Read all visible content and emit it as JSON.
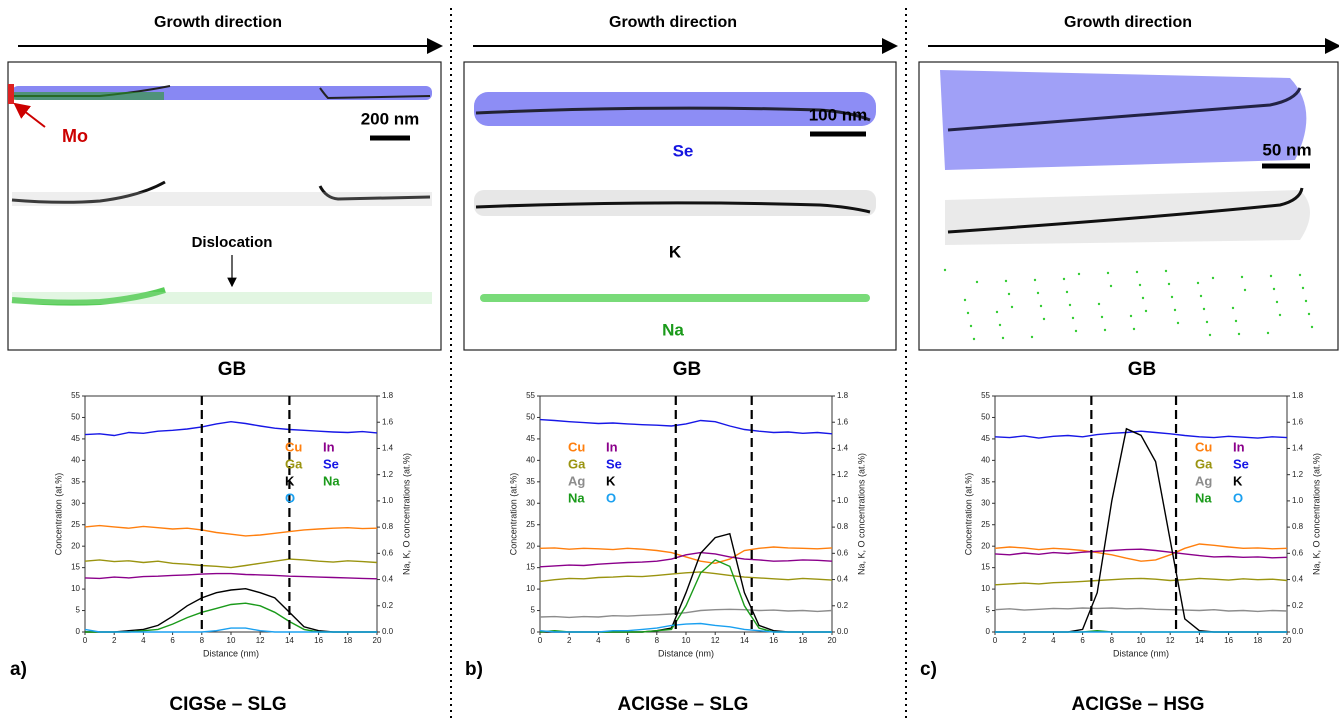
{
  "panels": [
    {
      "growth_direction": "Growth direction",
      "image_labels": [
        "Mo",
        "200 nm",
        "Dislocation"
      ],
      "gb_label": "GB",
      "label": "a)",
      "title": "CIGSe – SLG"
    },
    {
      "growth_direction": "Growth direction",
      "image_labels": [
        "Se",
        "100 nm",
        "K",
        "Na"
      ],
      "gb_label": "GB",
      "label": "b)",
      "title": "ACIGSe – SLG"
    },
    {
      "growth_direction": "Growth direction",
      "image_labels": [
        "50 nm"
      ],
      "gb_label": "GB",
      "label": "c)",
      "title": "ACIGSe – HSG"
    }
  ],
  "chart_data": [
    {
      "type": "line",
      "xlabel": "Distance (nm)",
      "ylabel": "Concentration (at.%)",
      "y2label": "Na, K, O concentrations (at.%)",
      "x": [
        0,
        1,
        2,
        3,
        4,
        5,
        6,
        7,
        8,
        9,
        10,
        11,
        12,
        13,
        14,
        15,
        16,
        17,
        18,
        19,
        20
      ],
      "xlim": [
        0,
        20
      ],
      "xticks": [
        0,
        2,
        4,
        6,
        8,
        10,
        12,
        14,
        16,
        18,
        20
      ],
      "ylim": [
        0,
        55
      ],
      "yticks": [
        0,
        5,
        10,
        15,
        20,
        25,
        30,
        35,
        40,
        45,
        50,
        55
      ],
      "y2lim": [
        0,
        1.8
      ],
      "y2ticks": [
        {
          "value": 0,
          "label": "0.0"
        },
        0.2,
        0.4,
        0.6,
        0.8,
        {
          "value": 1,
          "label": "1.0"
        },
        1.2,
        1.4,
        1.6,
        1.8
      ],
      "vlines": [
        8,
        14
      ],
      "legend": "upper right",
      "series": [
        {
          "name": "Cu",
          "color": "#ff7f0e",
          "values": [
            24.5,
            24.8,
            24.5,
            24.2,
            24.6,
            24.3,
            24,
            24.2,
            23.8,
            23.2,
            22.8,
            22.4,
            22.6,
            23,
            23.4,
            23.8,
            24,
            24.2,
            24.3,
            24.1,
            24.2
          ]
        },
        {
          "name": "In",
          "color": "#8b008b",
          "values": [
            12.6,
            12.5,
            12.8,
            12.6,
            12.9,
            13,
            13.2,
            13.3,
            13.5,
            13.6,
            13.6,
            13.4,
            13.3,
            13.2,
            13,
            12.9,
            12.8,
            12.7,
            12.6,
            12.5,
            12.4
          ]
        },
        {
          "name": "Ga",
          "color": "#9a9410",
          "values": [
            16.5,
            16.8,
            16.4,
            16.6,
            16.2,
            16.5,
            16,
            15.8,
            15.5,
            15.3,
            15,
            15.5,
            16,
            16.5,
            17,
            16.8,
            16.5,
            16.3,
            16.6,
            16.4,
            16.2
          ]
        },
        {
          "name": "Se",
          "color": "#1717e6",
          "values": [
            46,
            46.2,
            45.8,
            46.5,
            46.3,
            46.8,
            47,
            47.3,
            47.8,
            48.5,
            49,
            48.6,
            48,
            47.5,
            47.2,
            47,
            46.8,
            46.6,
            46.5,
            46.7,
            46.4
          ]
        },
        {
          "name": "K",
          "color": "#000000",
          "axis": "y2",
          "values": [
            0,
            0,
            0,
            0.01,
            0.02,
            0.05,
            0.12,
            0.2,
            0.26,
            0.3,
            0.32,
            0.33,
            0.3,
            0.26,
            0.15,
            0.04,
            0.01,
            0,
            0,
            0,
            0
          ]
        },
        {
          "name": "Na",
          "color": "#1a9a1a",
          "axis": "y2",
          "values": [
            0,
            0,
            0,
            0,
            0.01,
            0.02,
            0.06,
            0.11,
            0.15,
            0.18,
            0.21,
            0.22,
            0.2,
            0.15,
            0.08,
            0.02,
            0,
            0,
            0,
            0,
            0
          ]
        },
        {
          "name": "O",
          "color": "#1aa0f0",
          "axis": "y2",
          "values": [
            0.02,
            0,
            0,
            0,
            0,
            0,
            0,
            0,
            0,
            0.01,
            0.03,
            0.03,
            0.01,
            0,
            0,
            0,
            0,
            0,
            0,
            0,
            0
          ]
        }
      ]
    },
    {
      "type": "line",
      "xlabel": "Distance (nm)",
      "ylabel": "Concentration (at.%)",
      "y2label": "Na, K, O concentrations (at.%)",
      "x": [
        0,
        1,
        2,
        3,
        4,
        5,
        6,
        7,
        8,
        9,
        10,
        11,
        12,
        13,
        14,
        15,
        16,
        17,
        18,
        19,
        20
      ],
      "xlim": [
        0,
        20
      ],
      "xticks": [
        0,
        2,
        4,
        6,
        8,
        10,
        12,
        14,
        16,
        18,
        20
      ],
      "ylim": [
        0,
        55
      ],
      "yticks": [
        0,
        5,
        10,
        15,
        20,
        25,
        30,
        35,
        40,
        45,
        50,
        55
      ],
      "y2lim": [
        0,
        1.8
      ],
      "y2ticks": [
        {
          "value": 0,
          "label": "0.0"
        },
        0.2,
        0.4,
        0.6,
        0.8,
        {
          "value": 1,
          "label": "1.0"
        },
        1.2,
        1.4,
        1.6,
        1.8
      ],
      "vlines": [
        9.3,
        14.5
      ],
      "legend": "upper left",
      "series": [
        {
          "name": "Cu",
          "color": "#ff7f0e",
          "values": [
            19.5,
            19.6,
            19.3,
            19.5,
            19.4,
            19.2,
            19.5,
            19.3,
            19,
            18.5,
            17.5,
            16.5,
            16,
            17,
            19,
            19.5,
            19.8,
            19.6,
            19.5,
            19.4,
            19.6
          ]
        },
        {
          "name": "In",
          "color": "#8b008b",
          "values": [
            15.2,
            15.4,
            15.6,
            15.5,
            15.8,
            16,
            16.2,
            16.3,
            16.5,
            17,
            18,
            18.5,
            18.2,
            17.5,
            17,
            16.8,
            16.5,
            16.6,
            16.8,
            16.7,
            16.5
          ]
        },
        {
          "name": "Ga",
          "color": "#9a9410",
          "values": [
            11.8,
            12.2,
            12.5,
            12.4,
            12.7,
            12.8,
            13,
            12.9,
            13.2,
            13.5,
            13.8,
            14,
            13.6,
            13.2,
            12.8,
            12.6,
            12.4,
            12.2,
            12.5,
            12.3,
            12.1
          ]
        },
        {
          "name": "Se",
          "color": "#1717e6",
          "values": [
            49.5,
            49.3,
            49,
            48.8,
            48.6,
            48.7,
            48.5,
            48.3,
            48.2,
            48,
            48.5,
            49.3,
            49,
            48,
            47.2,
            46.8,
            46.5,
            46.6,
            46.3,
            46.5,
            46.2
          ]
        },
        {
          "name": "Ag",
          "color": "#8c8c8c",
          "values": [
            3.5,
            3.6,
            3.4,
            3.6,
            3.5,
            3.8,
            3.7,
            3.9,
            4,
            4.2,
            4.5,
            5,
            5.2,
            5.3,
            5.2,
            5,
            5.1,
            4.9,
            5,
            4.8,
            5
          ]
        },
        {
          "name": "K",
          "color": "#000000",
          "axis": "y2",
          "values": [
            0,
            0,
            0,
            0,
            0,
            0,
            0,
            0,
            0.01,
            0.03,
            0.3,
            0.6,
            0.72,
            0.75,
            0.3,
            0.05,
            0.01,
            0,
            0,
            0,
            0
          ]
        },
        {
          "name": "Na",
          "color": "#1a9a1a",
          "axis": "y2",
          "values": [
            0,
            0.01,
            0,
            0,
            0,
            0,
            0,
            0,
            0.01,
            0.02,
            0.2,
            0.45,
            0.55,
            0.5,
            0.2,
            0.03,
            0,
            0,
            0,
            0,
            0
          ]
        },
        {
          "name": "O",
          "color": "#1aa0f0",
          "axis": "y2",
          "values": [
            0.01,
            0,
            0,
            0,
            0,
            0.01,
            0.01,
            0.02,
            0.03,
            0.05,
            0.06,
            0.065,
            0.05,
            0.04,
            0.02,
            0.01,
            0,
            0,
            0,
            0,
            0
          ]
        }
      ]
    },
    {
      "type": "line",
      "xlabel": "Distance (nm)",
      "ylabel": "Concentration (at.%)",
      "y2label": "Na, K, O concentrations (at.%)",
      "x": [
        0,
        1,
        2,
        3,
        4,
        5,
        6,
        7,
        8,
        9,
        10,
        11,
        12,
        13,
        14,
        15,
        16,
        17,
        18,
        19,
        20
      ],
      "xlim": [
        0,
        20
      ],
      "xticks": [
        0,
        2,
        4,
        6,
        8,
        10,
        12,
        14,
        16,
        18,
        20
      ],
      "ylim": [
        0,
        55
      ],
      "yticks": [
        0,
        5,
        10,
        15,
        20,
        25,
        30,
        35,
        40,
        45,
        50,
        55
      ],
      "y2lim": [
        0,
        1.8
      ],
      "y2ticks": [
        {
          "value": 0,
          "label": "0.0"
        },
        0.2,
        0.4,
        0.6,
        0.8,
        {
          "value": 1,
          "label": "1.0"
        },
        1.2,
        1.4,
        1.6,
        1.8
      ],
      "vlines": [
        6.6,
        12.4
      ],
      "legend": "upper right",
      "series": [
        {
          "name": "Cu",
          "color": "#ff7f0e",
          "values": [
            19.5,
            19.8,
            19.6,
            19.2,
            19.5,
            19.3,
            19,
            18.5,
            18,
            17.2,
            16.5,
            16.8,
            18,
            19.5,
            20.5,
            20.2,
            19.8,
            19.5,
            19.6,
            19.4,
            19.5
          ]
        },
        {
          "name": "In",
          "color": "#8b008b",
          "values": [
            18.2,
            18,
            18.4,
            18.1,
            18.5,
            18.3,
            18.6,
            18.8,
            19,
            19.2,
            19.3,
            19,
            18.6,
            18.2,
            17.8,
            17.5,
            17.6,
            17.4,
            17.5,
            17.3,
            17.4
          ]
        },
        {
          "name": "Ga",
          "color": "#9a9410",
          "values": [
            11,
            11.2,
            11.4,
            11.2,
            11.5,
            11.6,
            11.8,
            12,
            12.2,
            12.4,
            12.5,
            12.3,
            12,
            12.2,
            12.5,
            12.3,
            12.1,
            12.4,
            12.2,
            12.3,
            12
          ]
        },
        {
          "name": "Se",
          "color": "#1717e6",
          "values": [
            45.5,
            45.3,
            45.7,
            45.2,
            45.6,
            45.8,
            45.5,
            46,
            46.3,
            46.5,
            46.8,
            46.5,
            46.2,
            45.8,
            45.5,
            45.3,
            45.6,
            45.4,
            45.2,
            45.5,
            45.3
          ]
        },
        {
          "name": "Ag",
          "color": "#8c8c8c",
          "values": [
            5.2,
            5.4,
            5.1,
            5.3,
            5.5,
            5.4,
            5.6,
            5.5,
            5.6,
            5.4,
            5.5,
            5.3,
            5.2,
            5.1,
            5,
            5.2,
            4.9,
            5,
            4.8,
            5,
            4.9
          ]
        },
        {
          "name": "K",
          "color": "#000000",
          "axis": "y2",
          "values": [
            0,
            0,
            0,
            0,
            0,
            0,
            0.02,
            0.3,
            1.0,
            1.55,
            1.5,
            1.3,
            0.7,
            0.1,
            0.01,
            0,
            0,
            0,
            0,
            0,
            0
          ]
        },
        {
          "name": "Na",
          "color": "#1a9a1a",
          "axis": "y2",
          "values": [
            0,
            0,
            0,
            0,
            0,
            0,
            0,
            0.01,
            0,
            0,
            0,
            0,
            0,
            0,
            0,
            0,
            0,
            0,
            0,
            0,
            0
          ]
        },
        {
          "name": "O",
          "color": "#1aa0f0",
          "axis": "y2",
          "values": [
            0,
            0,
            0,
            0,
            0,
            0,
            0,
            0,
            0,
            0,
            0,
            0,
            0,
            0,
            0,
            0,
            0,
            0,
            0,
            0,
            0
          ]
        }
      ]
    }
  ]
}
